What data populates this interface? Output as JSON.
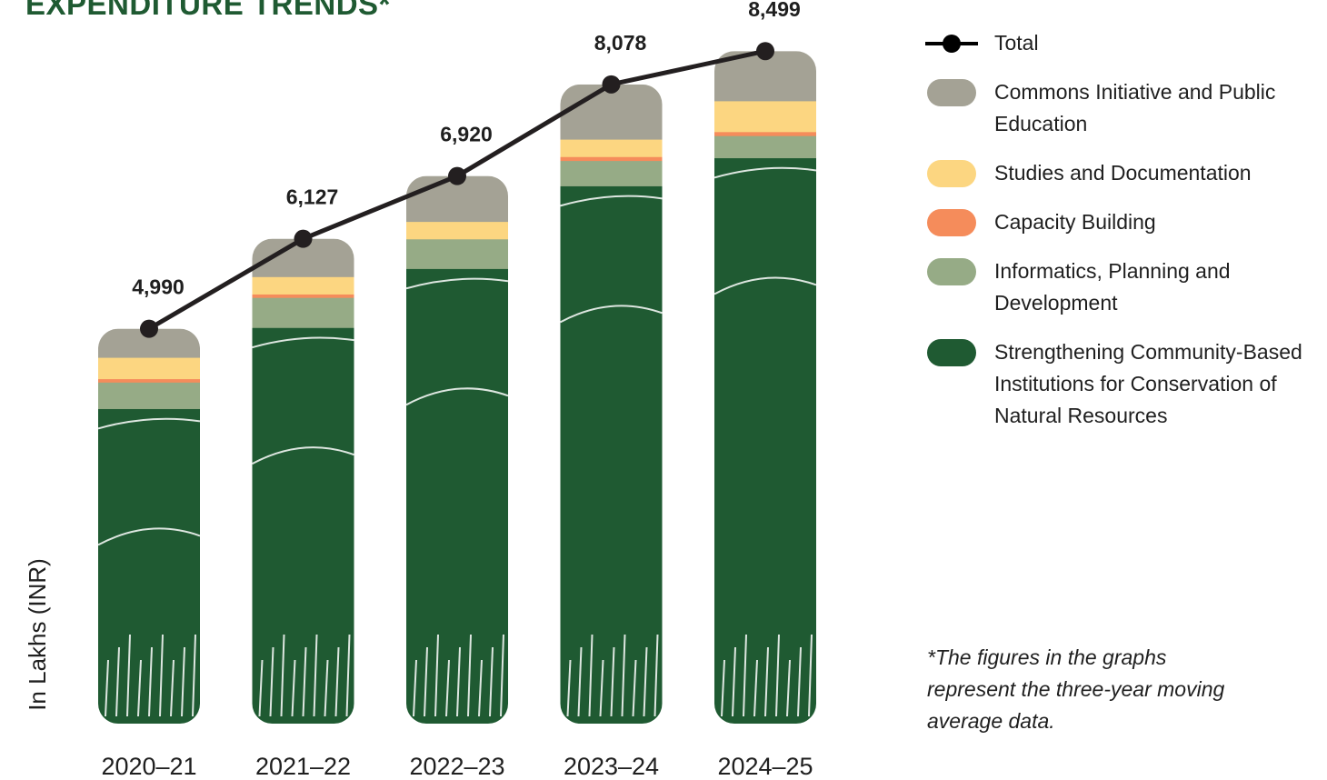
{
  "chart_data": {
    "type": "bar",
    "stacked": true,
    "title": "EXPENDITURE TRENDS*",
    "ylabel": "In Lakhs (INR)",
    "categories": [
      "2020–21",
      "2021–22",
      "2022–23",
      "2023–24",
      "2024–25"
    ],
    "totals": [
      4990,
      6127,
      6920,
      8078,
      8499
    ],
    "total_labels": [
      "4,990",
      "6,127",
      "6,920",
      "8,078",
      "8,499"
    ],
    "ylim": [
      0,
      8800
    ],
    "grid": false,
    "legend_position": "right",
    "series": [
      {
        "name": "Strengthening Community-Based Institutions for Conservation of Natural Resources",
        "color": "#1f5a32",
        "values": [
          3982,
          5007,
          5752,
          6797,
          7152
        ]
      },
      {
        "name": "Informatics, Planning and Development",
        "color": "#96ab86",
        "values": [
          335,
          380,
          375,
          320,
          280
        ]
      },
      {
        "name": "Capacity Building",
        "color": "#f58c5b",
        "values": [
          43,
          43,
          0,
          50,
          50
        ]
      },
      {
        "name": "Studies and Documentation",
        "color": "#fcd681",
        "values": [
          270,
          220,
          220,
          220,
          390
        ]
      },
      {
        "name": "Commons Initiative and Public Education",
        "color": "#a4a295",
        "values": [
          360,
          477,
          573,
          691,
          627
        ]
      }
    ],
    "line": {
      "name": "Total",
      "color": "#231f20"
    }
  },
  "legend": [
    {
      "kind": "line",
      "label": "Total",
      "color": "#231f20"
    },
    {
      "kind": "swatch",
      "label": "Commons Initiative and Public Education",
      "color": "#a4a295"
    },
    {
      "kind": "swatch",
      "label": "Studies and Documentation",
      "color": "#fcd681"
    },
    {
      "kind": "swatch",
      "label": "Capacity Building",
      "color": "#f58c5b"
    },
    {
      "kind": "swatch",
      "label": "Informatics, Planning and Development",
      "color": "#96ab86"
    },
    {
      "kind": "swatch",
      "label": "Strengthening Community-Based Institutions for Conservation of Natural Resources",
      "color": "#1f5a32"
    }
  ],
  "footnote": "*The figures in the graphs represent the three-year moving average data."
}
